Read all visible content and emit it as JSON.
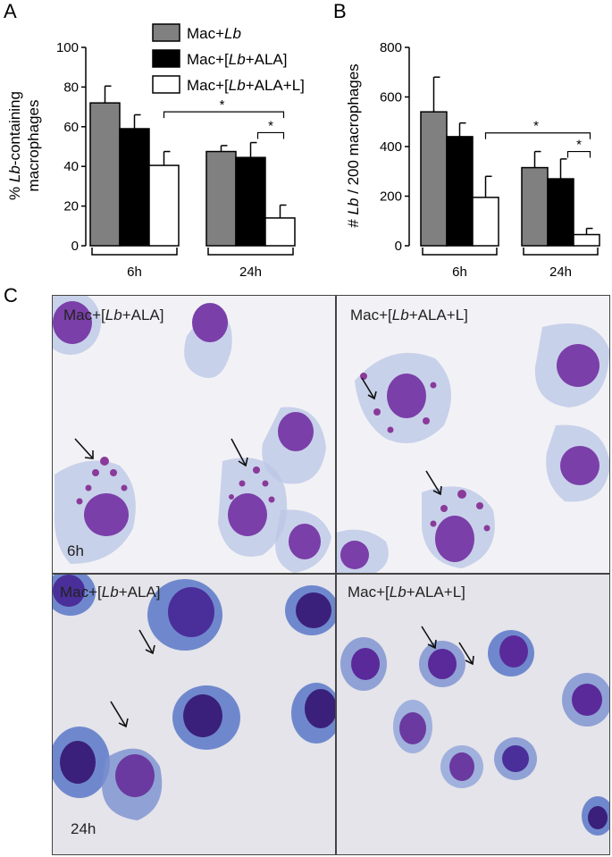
{
  "panels": {
    "a": "A",
    "b": "B",
    "c": "C"
  },
  "legend": [
    {
      "label_prefix": "Mac+",
      "label_italic": "Lb",
      "label_suffix": "",
      "color": "#808080"
    },
    {
      "label_prefix": "Mac+[",
      "label_italic": "Lb",
      "label_suffix": "+ALA]",
      "color": "#000000"
    },
    {
      "label_prefix": "Mac+[",
      "label_italic": "Lb",
      "label_suffix": "+ALA+L]",
      "color": "#ffffff"
    }
  ],
  "chart_data": [
    {
      "type": "bar",
      "ylabel_line1_prefix": "% ",
      "ylabel_line1_italic": "Lb",
      "ylabel_line1_suffix": "-containing",
      "ylabel_line2": "macrophages",
      "ylim": [
        0,
        100
      ],
      "yticks": [
        "0",
        "20",
        "40",
        "60",
        "80",
        "100"
      ],
      "categories": [
        "6h",
        "24h"
      ],
      "series": [
        {
          "name": "Mac+Lb",
          "values": [
            72,
            47.5
          ],
          "errors": [
            8.5,
            3
          ]
        },
        {
          "name": "Mac+[Lb+ALA]",
          "values": [
            59,
            44.5
          ],
          "errors": [
            7,
            7.5
          ]
        },
        {
          "name": "Mac+[Lb+ALA+L]",
          "values": [
            40.5,
            14
          ],
          "errors": [
            7,
            6.5
          ]
        }
      ],
      "annotations": [
        "*",
        "*"
      ]
    },
    {
      "type": "bar",
      "ylabel_prefix": "# ",
      "ylabel_italic": "Lb",
      "ylabel_suffix": " / 200 macrophages",
      "ylim": [
        0,
        800
      ],
      "yticks": [
        "0",
        "200",
        "400",
        "600",
        "800"
      ],
      "categories": [
        "6h",
        "24h"
      ],
      "series": [
        {
          "name": "Mac+Lb",
          "values": [
            540,
            315
          ],
          "errors": [
            140,
            65
          ]
        },
        {
          "name": "Mac+[Lb+ALA]",
          "values": [
            440,
            270
          ],
          "errors": [
            55,
            80
          ]
        },
        {
          "name": "Mac+[Lb+ALA+L]",
          "values": [
            195,
            45
          ],
          "errors": [
            85,
            25
          ]
        }
      ],
      "annotations": [
        "*",
        "*"
      ]
    }
  ],
  "micrographs": [
    {
      "label_prefix": "Mac+[",
      "label_italic": "Lb",
      "label_suffix": "+ALA]",
      "time": "6h"
    },
    {
      "label_prefix": "Mac+[",
      "label_italic": "Lb",
      "label_suffix": "+ALA+L]",
      "time": ""
    },
    {
      "label_prefix": "Mac+[",
      "label_italic": "Lb",
      "label_suffix": "+ALA]",
      "time": "24h"
    },
    {
      "label_prefix": "Mac+[",
      "label_italic": "Lb",
      "label_suffix": "+ALA+L]",
      "time": ""
    }
  ]
}
